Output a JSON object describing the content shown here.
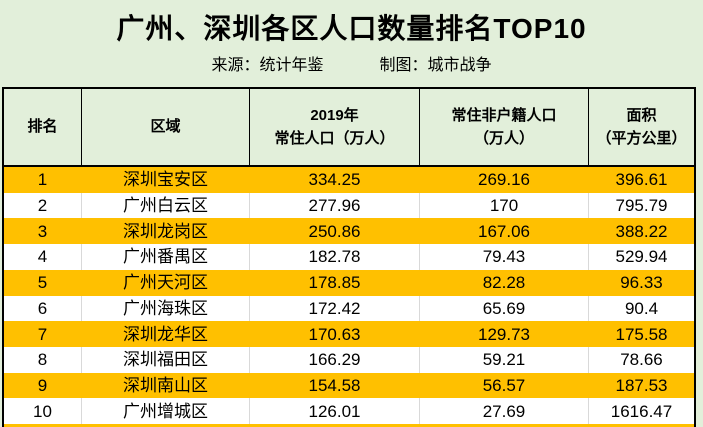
{
  "header": {
    "title": "广州、深圳各区人口数量排名TOP10",
    "source_label": "来源：统计年鉴",
    "credit_label": "制图：城市战争"
  },
  "colors": {
    "background_green": "#E2EFDA",
    "highlight_orange": "#FFC000",
    "grid_black": "#000000",
    "row_divider_gray": "#D9D9D9"
  },
  "table": {
    "columns": [
      {
        "line1": "排名",
        "line2": ""
      },
      {
        "line1": "区域",
        "line2": ""
      },
      {
        "line1": "2019年",
        "line2": "常住人口（万人）"
      },
      {
        "line1": "常住非户籍人口",
        "line2": "（万人）"
      },
      {
        "line1": "面积",
        "line2": "（平方公里）"
      }
    ],
    "rows": [
      {
        "rank": "1",
        "district": "深圳宝安区",
        "population": "334.25",
        "nonlocal": "269.16",
        "area": "396.61",
        "highlight": true
      },
      {
        "rank": "2",
        "district": "广州白云区",
        "population": "277.96",
        "nonlocal": "170",
        "area": "795.79",
        "highlight": false
      },
      {
        "rank": "3",
        "district": "深圳龙岗区",
        "population": "250.86",
        "nonlocal": "167.06",
        "area": "388.22",
        "highlight": true
      },
      {
        "rank": "4",
        "district": "广州番禺区",
        "population": "182.78",
        "nonlocal": "79.43",
        "area": "529.94",
        "highlight": false
      },
      {
        "rank": "5",
        "district": "广州天河区",
        "population": "178.85",
        "nonlocal": "82.28",
        "area": "96.33",
        "highlight": true
      },
      {
        "rank": "6",
        "district": "广州海珠区",
        "population": "172.42",
        "nonlocal": "65.69",
        "area": "90.4",
        "highlight": false
      },
      {
        "rank": "7",
        "district": "深圳龙华区",
        "population": "170.63",
        "nonlocal": "129.73",
        "area": "175.58",
        "highlight": true
      },
      {
        "rank": "8",
        "district": "深圳福田区",
        "population": "166.29",
        "nonlocal": "59.21",
        "area": "78.66",
        "highlight": false
      },
      {
        "rank": "9",
        "district": "深圳南山区",
        "population": "154.58",
        "nonlocal": "56.57",
        "area": "187.53",
        "highlight": true
      },
      {
        "rank": "10",
        "district": "广州增城区",
        "population": "126.01",
        "nonlocal": "27.69",
        "area": "1616.47",
        "highlight": false
      }
    ]
  },
  "chart_data": {
    "type": "table",
    "title": "广州、深圳各区人口数量排名TOP10",
    "source": "来源：统计年鉴",
    "credit": "制图：城市战争",
    "columns": [
      "排名",
      "区域",
      "2019年常住人口（万人）",
      "常住非户籍人口（万人）",
      "面积（平方公里）"
    ],
    "rows": [
      [
        1,
        "深圳宝安区",
        334.25,
        269.16,
        396.61
      ],
      [
        2,
        "广州白云区",
        277.96,
        170.0,
        795.79
      ],
      [
        3,
        "深圳龙岗区",
        250.86,
        167.06,
        388.22
      ],
      [
        4,
        "广州番禺区",
        182.78,
        79.43,
        529.94
      ],
      [
        5,
        "广州天河区",
        178.85,
        82.28,
        96.33
      ],
      [
        6,
        "广州海珠区",
        172.42,
        65.69,
        90.4
      ],
      [
        7,
        "深圳龙华区",
        170.63,
        129.73,
        175.58
      ],
      [
        8,
        "深圳福田区",
        166.29,
        59.21,
        78.66
      ],
      [
        9,
        "深圳南山区",
        154.58,
        56.57,
        187.53
      ],
      [
        10,
        "广州增城区",
        126.01,
        27.69,
        1616.47
      ]
    ],
    "layout": {
      "highlighted_row_ranks": [
        1,
        3,
        5,
        7,
        9
      ],
      "highlight_color": "#FFC000"
    }
  }
}
